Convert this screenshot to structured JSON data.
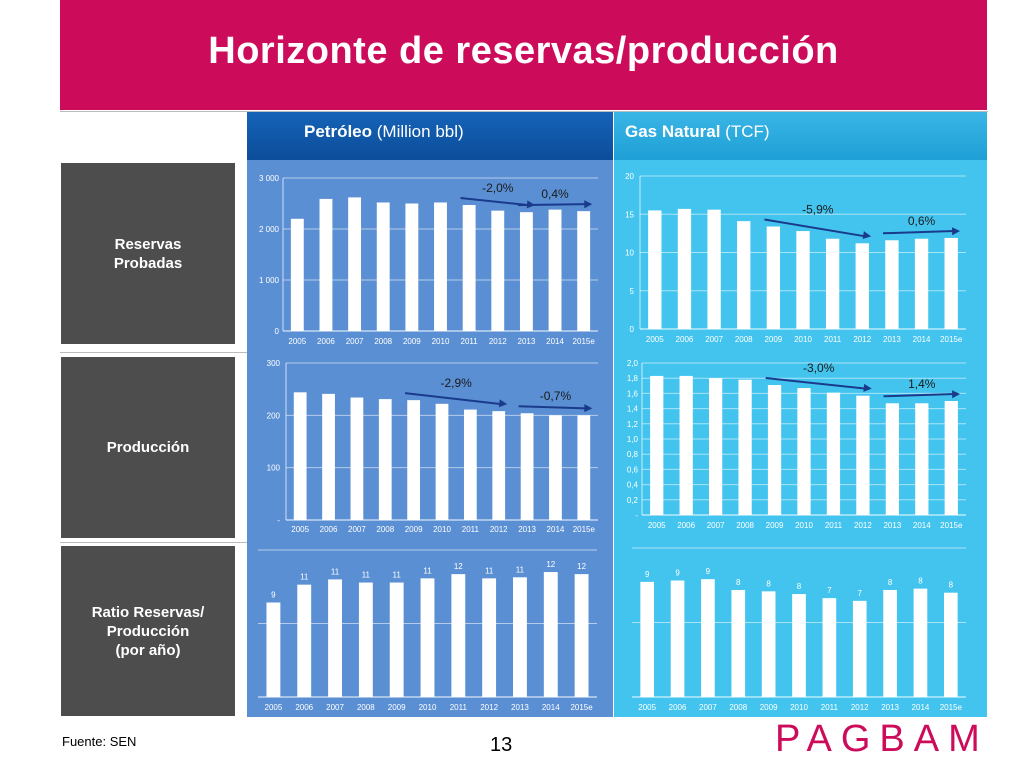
{
  "title": "Horizonte de reservas/producción",
  "columns": {
    "oil": {
      "bold": "Petróleo",
      "unit": " (Million bbl)"
    },
    "gas": {
      "bold": "Gas Natural",
      "unit": " (TCF)"
    }
  },
  "row_labels": {
    "reserves": "Reservas\nProbadas",
    "production": "Producción",
    "ratio": "Ratio Reservas/\nProducción\n(por año)"
  },
  "footer": {
    "source": "Fuente: SEN",
    "page": "13",
    "brand": "PAGBAM"
  },
  "colors": {
    "title_bg": "#cc0c5a",
    "oil_bg": "#5b8fd3",
    "gas_bg": "#43c4ee",
    "label_bg": "#4d4d4d",
    "bar": "#ffffff"
  },
  "chart_data": [
    {
      "id": "oil-reserves",
      "type": "bar",
      "categories": [
        "2005",
        "2006",
        "2007",
        "2008",
        "2009",
        "2010",
        "2011",
        "2012",
        "2013",
        "2014",
        "2015e"
      ],
      "values": [
        2200,
        2590,
        2620,
        2520,
        2500,
        2520,
        2470,
        2360,
        2330,
        2380,
        2350
      ],
      "ylim": [
        0,
        3000
      ],
      "yticks": [
        0,
        1000,
        2000,
        3000
      ],
      "ytick_labels": [
        "0",
        "1 000",
        "2 000",
        "3 000"
      ],
      "annotations": [
        {
          "text": "-2,0%",
          "x_from": "2011",
          "x_to": "2013"
        },
        {
          "text": "0,4%",
          "x_from": "2013",
          "x_to": "2015e"
        }
      ]
    },
    {
      "id": "gas-reserves",
      "type": "bar",
      "categories": [
        "2005",
        "2006",
        "2007",
        "2008",
        "2009",
        "2010",
        "2011",
        "2012",
        "2013",
        "2014",
        "2015e"
      ],
      "values": [
        15.5,
        15.7,
        15.6,
        14.1,
        13.4,
        12.8,
        11.8,
        11.2,
        11.6,
        11.8,
        11.9
      ],
      "ylim": [
        0,
        20
      ],
      "yticks": [
        0,
        5,
        10,
        15,
        20
      ],
      "ytick_labels": [
        "0",
        "5",
        "10",
        "15",
        "20"
      ],
      "annotations": [
        {
          "text": "-5,9%",
          "x_from": "2009",
          "x_to": "2012"
        },
        {
          "text": "0,6%",
          "x_from": "2013",
          "x_to": "2015e"
        }
      ]
    },
    {
      "id": "oil-production",
      "type": "bar",
      "categories": [
        "2005",
        "2006",
        "2007",
        "2008",
        "2009",
        "2010",
        "2011",
        "2012",
        "2013",
        "2014",
        "2015e"
      ],
      "values": [
        244,
        241,
        234,
        231,
        229,
        222,
        211,
        208,
        204,
        200,
        200
      ],
      "ylim": [
        0,
        300
      ],
      "yticks": [
        0,
        100,
        200,
        300
      ],
      "ytick_labels": [
        "-",
        "100",
        "200",
        "300"
      ],
      "annotations": [
        {
          "text": "-2,9%",
          "x_from": "2009",
          "x_to": "2012"
        },
        {
          "text": "-0,7%",
          "x_from": "2013",
          "x_to": "2015e"
        }
      ]
    },
    {
      "id": "gas-production",
      "type": "bar",
      "categories": [
        "2005",
        "2006",
        "2007",
        "2008",
        "2009",
        "2010",
        "2011",
        "2012",
        "2013",
        "2014",
        "2015e"
      ],
      "values": [
        1.83,
        1.83,
        1.8,
        1.78,
        1.71,
        1.67,
        1.61,
        1.57,
        1.47,
        1.47,
        1.5
      ],
      "ylim": [
        0,
        2.0
      ],
      "yticks": [
        0,
        0.2,
        0.4,
        0.6,
        0.8,
        1.0,
        1.2,
        1.4,
        1.6,
        1.8,
        2.0
      ],
      "ytick_labels": [
        "-",
        "0,2",
        "0,4",
        "0,6",
        "0,8",
        "1,0",
        "1,2",
        "1,4",
        "1,6",
        "1,8",
        "2,0"
      ],
      "annotations": [
        {
          "text": "-3,0%",
          "x_from": "2009",
          "x_to": "2012"
        },
        {
          "text": "1,4%",
          "x_from": "2013",
          "x_to": "2015e"
        }
      ]
    },
    {
      "id": "oil-ratio",
      "type": "bar",
      "categories": [
        "2005",
        "2006",
        "2007",
        "2008",
        "2009",
        "2010",
        "2011",
        "2012",
        "2013",
        "2014",
        "2015e"
      ],
      "values": [
        9,
        11,
        11,
        11,
        11,
        11,
        12,
        11,
        11,
        12,
        12
      ],
      "plot_values": [
        9.0,
        10.7,
        11.2,
        10.9,
        10.9,
        11.3,
        11.7,
        11.3,
        11.4,
        11.9,
        11.7
      ],
      "ylim": [
        0,
        14
      ],
      "yticks": [
        0,
        7,
        14
      ],
      "ytick_labels": [
        "",
        "",
        ""
      ]
    },
    {
      "id": "gas-ratio",
      "type": "bar",
      "categories": [
        "2005",
        "2006",
        "2007",
        "2008",
        "2009",
        "2010",
        "2011",
        "2012",
        "2013",
        "2014",
        "2015e"
      ],
      "values": [
        9,
        9,
        9,
        8,
        8,
        8,
        7,
        7,
        8,
        8,
        8
      ],
      "plot_values": [
        8.5,
        8.6,
        8.7,
        7.9,
        7.8,
        7.6,
        7.3,
        7.1,
        7.9,
        8.0,
        7.7
      ],
      "ylim": [
        0,
        11
      ],
      "yticks": [
        0,
        5.5,
        11
      ],
      "ytick_labels": [
        "",
        "",
        ""
      ]
    }
  ]
}
